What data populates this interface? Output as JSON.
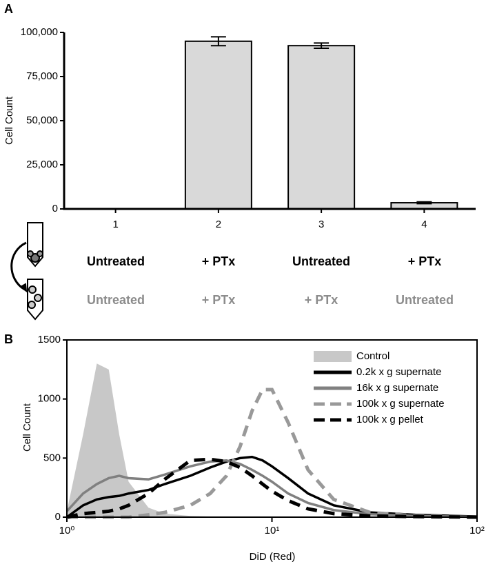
{
  "panel_labels": [
    "A",
    "B"
  ],
  "treatments": {
    "donor": [
      "Untreated",
      "+ PTx",
      "Untreated",
      "+ PTx"
    ],
    "donor_color": "#000000",
    "recipient": [
      "Untreated",
      "+ PTx",
      "+ PTx",
      "Untreated"
    ],
    "recipient_color": "#8c8c8c"
  },
  "chart_data": [
    {
      "type": "bar",
      "y_label": "Cell Count",
      "categories": [
        "1",
        "2",
        "3",
        "4"
      ],
      "values": [
        0,
        95000,
        92500,
        3500
      ],
      "errors": [
        0,
        2500,
        1500,
        500
      ],
      "color": "#d9d9d9",
      "ylim": [
        0,
        100000
      ],
      "yticks": [
        0,
        {
          "value": 25000,
          "label": "25,000"
        },
        {
          "value": 50000,
          "label": "50,000"
        },
        {
          "value": 75000,
          "label": "75,000"
        },
        {
          "value": 100000,
          "label": "100,000"
        }
      ]
    },
    {
      "type": "line",
      "y_label": "Cell Count",
      "x_label": "DiD (Red)",
      "log_x": true,
      "legend": "upper right",
      "x": [
        1,
        1.2,
        1.4,
        1.6,
        1.8,
        2,
        2.5,
        3,
        4,
        5,
        6,
        7,
        8,
        9,
        10,
        12,
        15,
        20,
        30,
        50,
        100
      ],
      "series": [
        {
          "name": "Control",
          "color": "#c8c8c8",
          "style": "area",
          "values": [
            50,
            700,
            1300,
            1250,
            700,
            300,
            80,
            30,
            10,
            5,
            0,
            0,
            0,
            0,
            0,
            0,
            0,
            0,
            0,
            0,
            0
          ]
        },
        {
          "name": "0.2k x g supernate",
          "color": "#000000",
          "style": "solid",
          "values": [
            0,
            100,
            150,
            170,
            180,
            200,
            230,
            280,
            350,
            420,
            470,
            500,
            510,
            480,
            430,
            330,
            200,
            100,
            40,
            20,
            5
          ]
        },
        {
          "name": "16k x g supernate",
          "color": "#808080",
          "style": "solid",
          "values": [
            50,
            200,
            280,
            330,
            350,
            330,
            320,
            360,
            430,
            470,
            480,
            450,
            400,
            350,
            300,
            200,
            120,
            60,
            25,
            10,
            2
          ]
        },
        {
          "name": "100k x g supernate",
          "color": "#999999",
          "style": "dashed",
          "values": [
            0,
            0,
            0,
            0,
            0,
            0,
            20,
            40,
            100,
            200,
            350,
            600,
            900,
            1080,
            1080,
            800,
            400,
            150,
            40,
            10,
            0
          ]
        },
        {
          "name": "100k x g pellet",
          "color": "#000000",
          "style": "dashed",
          "values": [
            0,
            30,
            40,
            50,
            70,
            100,
            200,
            320,
            480,
            490,
            470,
            420,
            350,
            280,
            220,
            140,
            70,
            30,
            10,
            5,
            0
          ]
        }
      ],
      "xlim": [
        1,
        100
      ],
      "xticks": [
        {
          "value": 1,
          "label": "10⁰"
        },
        {
          "value": 10,
          "label": "10¹"
        },
        {
          "value": 100,
          "label": "10²"
        }
      ],
      "ylim": [
        0,
        1500
      ],
      "yticks": [
        0,
        500,
        1000,
        1500
      ]
    }
  ]
}
